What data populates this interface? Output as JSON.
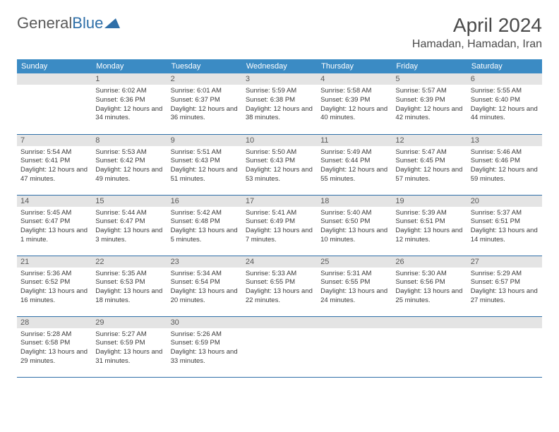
{
  "logo": {
    "part1": "General",
    "part2": "Blue"
  },
  "title": "April 2024",
  "location": "Hamadan, Hamadan, Iran",
  "colors": {
    "header_bg": "#3b8bc4",
    "header_text": "#ffffff",
    "daynum_bg": "#e4e4e4",
    "daynum_text": "#5a5a5a",
    "border": "#2f6fa8",
    "body_text": "#3a3a3a"
  },
  "weekdays": [
    "Sunday",
    "Monday",
    "Tuesday",
    "Wednesday",
    "Thursday",
    "Friday",
    "Saturday"
  ],
  "weeks": [
    [
      null,
      {
        "n": "1",
        "sr": "6:02 AM",
        "ss": "6:36 PM",
        "dl": "12 hours and 34 minutes."
      },
      {
        "n": "2",
        "sr": "6:01 AM",
        "ss": "6:37 PM",
        "dl": "12 hours and 36 minutes."
      },
      {
        "n": "3",
        "sr": "5:59 AM",
        "ss": "6:38 PM",
        "dl": "12 hours and 38 minutes."
      },
      {
        "n": "4",
        "sr": "5:58 AM",
        "ss": "6:39 PM",
        "dl": "12 hours and 40 minutes."
      },
      {
        "n": "5",
        "sr": "5:57 AM",
        "ss": "6:39 PM",
        "dl": "12 hours and 42 minutes."
      },
      {
        "n": "6",
        "sr": "5:55 AM",
        "ss": "6:40 PM",
        "dl": "12 hours and 44 minutes."
      }
    ],
    [
      {
        "n": "7",
        "sr": "5:54 AM",
        "ss": "6:41 PM",
        "dl": "12 hours and 47 minutes."
      },
      {
        "n": "8",
        "sr": "5:53 AM",
        "ss": "6:42 PM",
        "dl": "12 hours and 49 minutes."
      },
      {
        "n": "9",
        "sr": "5:51 AM",
        "ss": "6:43 PM",
        "dl": "12 hours and 51 minutes."
      },
      {
        "n": "10",
        "sr": "5:50 AM",
        "ss": "6:43 PM",
        "dl": "12 hours and 53 minutes."
      },
      {
        "n": "11",
        "sr": "5:49 AM",
        "ss": "6:44 PM",
        "dl": "12 hours and 55 minutes."
      },
      {
        "n": "12",
        "sr": "5:47 AM",
        "ss": "6:45 PM",
        "dl": "12 hours and 57 minutes."
      },
      {
        "n": "13",
        "sr": "5:46 AM",
        "ss": "6:46 PM",
        "dl": "12 hours and 59 minutes."
      }
    ],
    [
      {
        "n": "14",
        "sr": "5:45 AM",
        "ss": "6:47 PM",
        "dl": "13 hours and 1 minute."
      },
      {
        "n": "15",
        "sr": "5:44 AM",
        "ss": "6:47 PM",
        "dl": "13 hours and 3 minutes."
      },
      {
        "n": "16",
        "sr": "5:42 AM",
        "ss": "6:48 PM",
        "dl": "13 hours and 5 minutes."
      },
      {
        "n": "17",
        "sr": "5:41 AM",
        "ss": "6:49 PM",
        "dl": "13 hours and 7 minutes."
      },
      {
        "n": "18",
        "sr": "5:40 AM",
        "ss": "6:50 PM",
        "dl": "13 hours and 10 minutes."
      },
      {
        "n": "19",
        "sr": "5:39 AM",
        "ss": "6:51 PM",
        "dl": "13 hours and 12 minutes."
      },
      {
        "n": "20",
        "sr": "5:37 AM",
        "ss": "6:51 PM",
        "dl": "13 hours and 14 minutes."
      }
    ],
    [
      {
        "n": "21",
        "sr": "5:36 AM",
        "ss": "6:52 PM",
        "dl": "13 hours and 16 minutes."
      },
      {
        "n": "22",
        "sr": "5:35 AM",
        "ss": "6:53 PM",
        "dl": "13 hours and 18 minutes."
      },
      {
        "n": "23",
        "sr": "5:34 AM",
        "ss": "6:54 PM",
        "dl": "13 hours and 20 minutes."
      },
      {
        "n": "24",
        "sr": "5:33 AM",
        "ss": "6:55 PM",
        "dl": "13 hours and 22 minutes."
      },
      {
        "n": "25",
        "sr": "5:31 AM",
        "ss": "6:55 PM",
        "dl": "13 hours and 24 minutes."
      },
      {
        "n": "26",
        "sr": "5:30 AM",
        "ss": "6:56 PM",
        "dl": "13 hours and 25 minutes."
      },
      {
        "n": "27",
        "sr": "5:29 AM",
        "ss": "6:57 PM",
        "dl": "13 hours and 27 minutes."
      }
    ],
    [
      {
        "n": "28",
        "sr": "5:28 AM",
        "ss": "6:58 PM",
        "dl": "13 hours and 29 minutes."
      },
      {
        "n": "29",
        "sr": "5:27 AM",
        "ss": "6:59 PM",
        "dl": "13 hours and 31 minutes."
      },
      {
        "n": "30",
        "sr": "5:26 AM",
        "ss": "6:59 PM",
        "dl": "13 hours and 33 minutes."
      },
      null,
      null,
      null,
      null
    ]
  ],
  "labels": {
    "sunrise": "Sunrise:",
    "sunset": "Sunset:",
    "daylight": "Daylight:"
  }
}
